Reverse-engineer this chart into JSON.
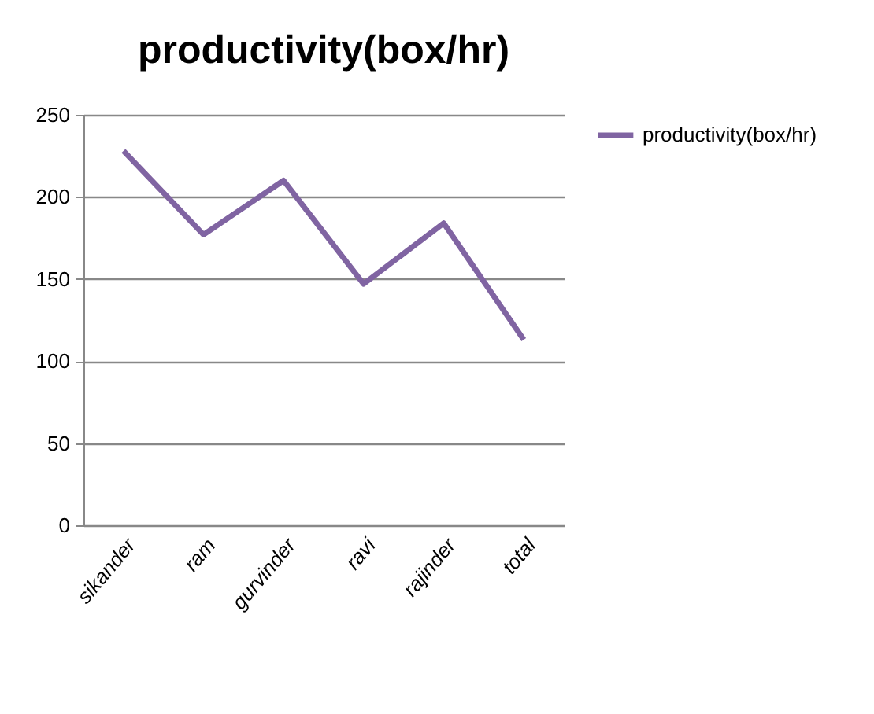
{
  "chart_data": {
    "type": "line",
    "title": "productivity(box/hr)",
    "categories": [
      "sikander",
      "ram",
      "gurvinder",
      "ravi",
      "rajinder",
      "total"
    ],
    "series": [
      {
        "name": "productivity(box/hr)",
        "color": "#8064a2",
        "values": [
          228,
          177,
          210,
          147,
          184,
          113
        ]
      }
    ],
    "ylim": [
      0,
      250
    ],
    "yticks": [
      0,
      50,
      100,
      150,
      200,
      250
    ],
    "grid": "y",
    "legend": "right"
  }
}
